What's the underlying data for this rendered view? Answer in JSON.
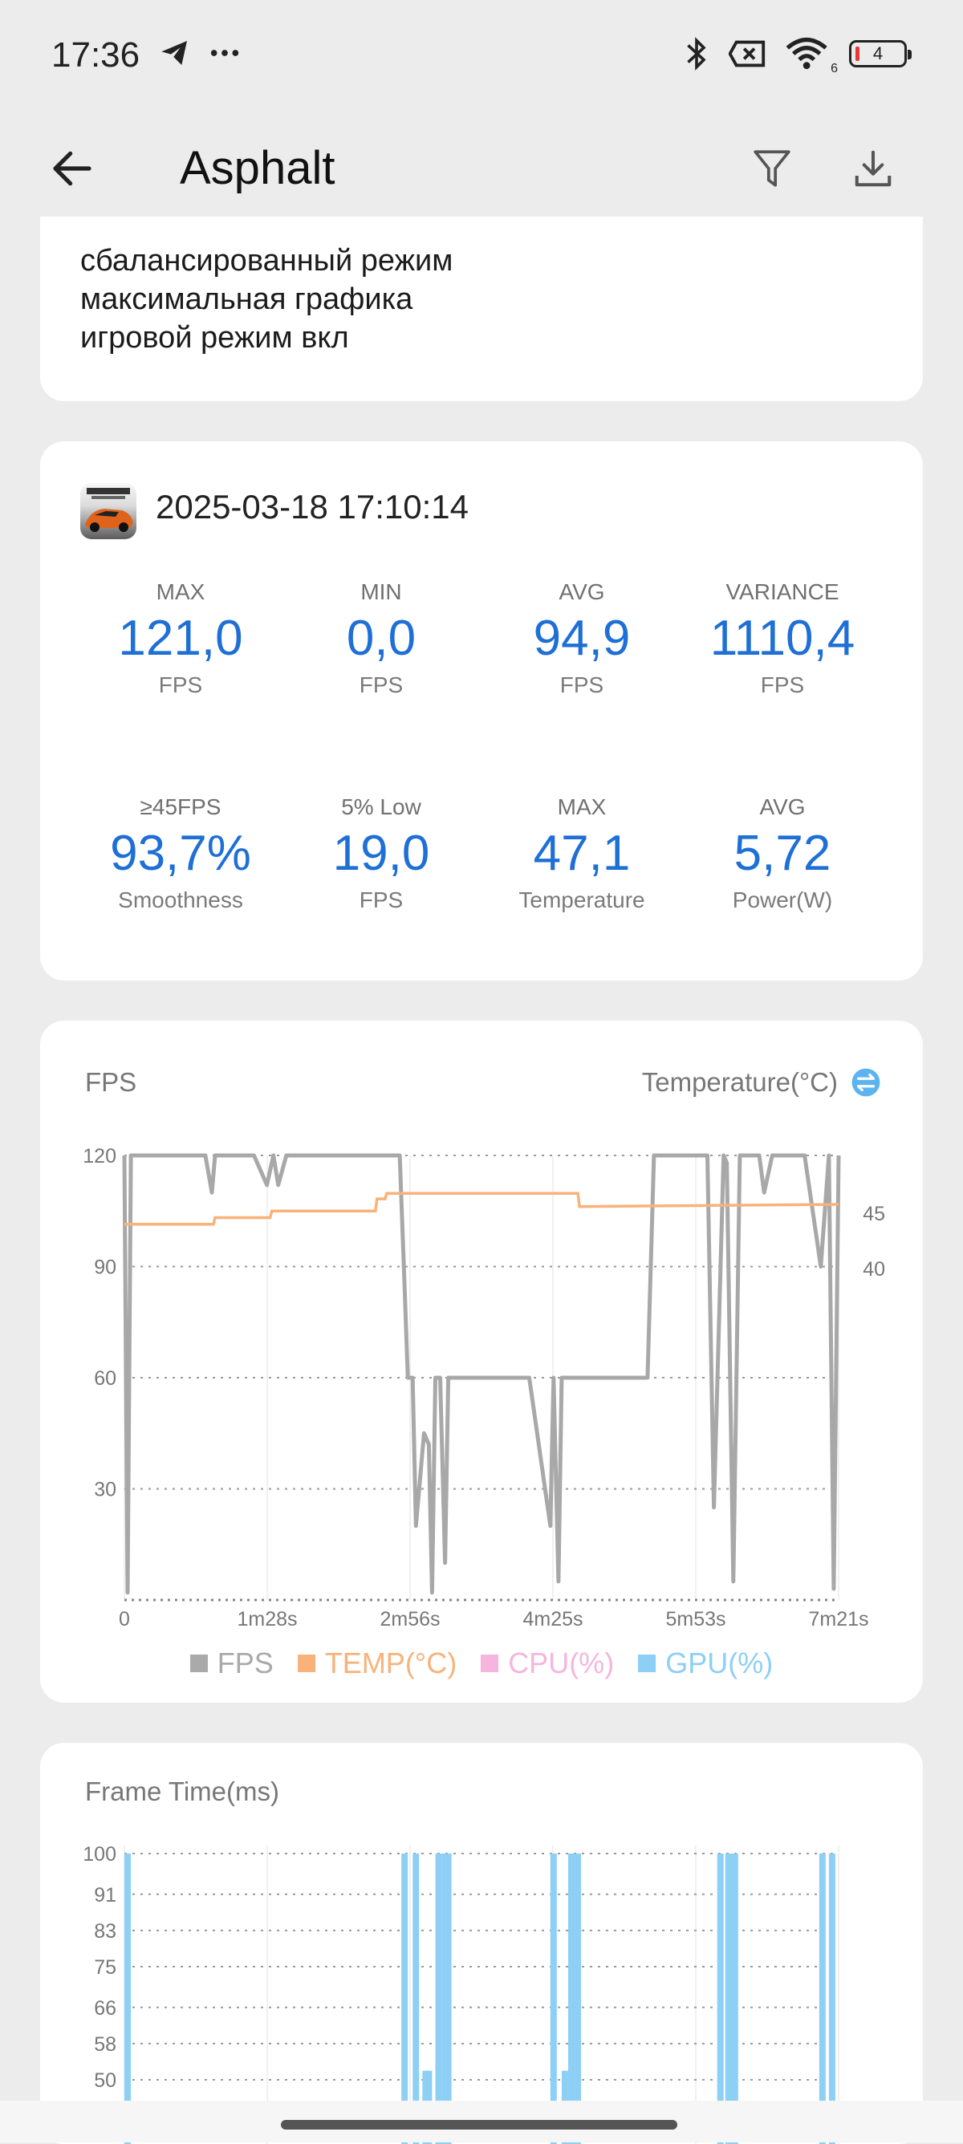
{
  "status_bar": {
    "time": "17:36",
    "left_icons": [
      "telegram-icon",
      "more-dots-icon"
    ],
    "right_icons": [
      "bluetooth-icon",
      "sim-disabled-icon",
      "wifi-6-icon"
    ],
    "wifi_badge": "6",
    "battery_level": "4"
  },
  "header": {
    "title": "Asphalt",
    "back_icon": "back-arrow-icon",
    "filter_icon": "filter-icon",
    "download_icon": "download-icon"
  },
  "notes": [
    "сбалансированный режим",
    "максимальная графика",
    "игровой режим вкл"
  ],
  "session": {
    "date": "2025-03-18 17:10:14",
    "stats": [
      {
        "label": "MAX",
        "value": "121,0",
        "unit": "FPS"
      },
      {
        "label": "MIN",
        "value": "0,0",
        "unit": "FPS"
      },
      {
        "label": "AVG",
        "value": "94,9",
        "unit": "FPS"
      },
      {
        "label": "VARIANCE",
        "value": "1110,4",
        "unit": "FPS"
      },
      {
        "label": "≥45FPS",
        "value": "93,7%",
        "unit": "Smoothness"
      },
      {
        "label": "5% Low",
        "value": "19,0",
        "unit": "FPS"
      },
      {
        "label": "MAX",
        "value": "47,1",
        "unit": "Temperature"
      },
      {
        "label": "AVG",
        "value": "5,72",
        "unit": "Power(W)"
      }
    ]
  },
  "colors": {
    "accent": "#1e6fd6",
    "fps": "#b0b0b0",
    "temp": "#f8b27a",
    "cpu": "#f5b5de",
    "gpu": "#8ecff5"
  },
  "fps_chart": {
    "title": "FPS",
    "right_axis_title": "Temperature(°C)",
    "legend": [
      {
        "label": "FPS",
        "color": "#aaaaaa"
      },
      {
        "label": "TEMP(°C)",
        "color": "#f8b27a"
      },
      {
        "label": "CPU(%)",
        "color": "#f5b5de"
      },
      {
        "label": "GPU(%)",
        "color": "#8ecff5"
      }
    ]
  },
  "chart_data": [
    {
      "type": "line",
      "title": "FPS",
      "ylabel_right": "Temperature(°C)",
      "x_ticks": [
        "0",
        "1m28s",
        "2m56s",
        "4m25s",
        "5m53s",
        "7m21s"
      ],
      "y_ticks": [
        30,
        60,
        90,
        120
      ],
      "y2_ticks": [
        40,
        45
      ],
      "xlim_seconds": [
        0,
        441
      ],
      "ylim": [
        0,
        120
      ],
      "grid": true,
      "legend_position": "bottom",
      "series": [
        {
          "name": "FPS",
          "x": [
            0,
            2,
            4,
            6,
            8,
            10,
            50,
            54,
            56,
            58,
            60,
            80,
            88,
            92,
            95,
            100,
            170,
            173,
            175,
            178,
            180,
            185,
            188,
            190,
            192,
            195,
            198,
            200,
            205,
            210,
            220,
            250,
            263,
            265,
            268,
            270,
            280,
            285,
            290,
            310,
            323,
            327,
            330,
            350,
            360,
            364,
            370,
            372,
            376,
            380,
            385,
            388,
            392,
            395,
            400,
            420,
            430,
            435,
            438,
            441
          ],
          "y": [
            120,
            2,
            120,
            120,
            120,
            120,
            120,
            110,
            120,
            120,
            120,
            120,
            112,
            120,
            112,
            120,
            120,
            85,
            60,
            60,
            20,
            45,
            42,
            2,
            60,
            60,
            10,
            60,
            60,
            60,
            60,
            60,
            20,
            60,
            5,
            60,
            60,
            60,
            60,
            60,
            60,
            120,
            120,
            120,
            120,
            25,
            120,
            118,
            5,
            120,
            120,
            120,
            120,
            110,
            120,
            120,
            90,
            120,
            3,
            120
          ]
        },
        {
          "name": "TEMP(°C)",
          "x": [
            0,
            55,
            56,
            90,
            91,
            155,
            156,
            161,
            162,
            280,
            281,
            441
          ],
          "y": [
            44,
            44,
            44.6,
            44.6,
            45.2,
            45.2,
            46.3,
            46.3,
            46.8,
            46.8,
            45.6,
            45.8
          ]
        }
      ]
    },
    {
      "type": "bar",
      "title": "Frame Time(ms)",
      "y_ticks": [
        50,
        58,
        66,
        75,
        83,
        91,
        100
      ],
      "ylim": [
        50,
        100
      ],
      "grid": true,
      "x_seconds": [
        2,
        173,
        180,
        186,
        188,
        194,
        198,
        200,
        265,
        272,
        276,
        280,
        368,
        373,
        375,
        377,
        431,
        437
      ],
      "values": [
        100,
        100,
        100,
        52,
        52,
        100,
        100,
        100,
        100,
        52,
        100,
        100,
        100,
        100,
        100,
        100,
        100,
        100
      ]
    }
  ],
  "frametime_chart": {
    "title": "Frame Time(ms)"
  }
}
